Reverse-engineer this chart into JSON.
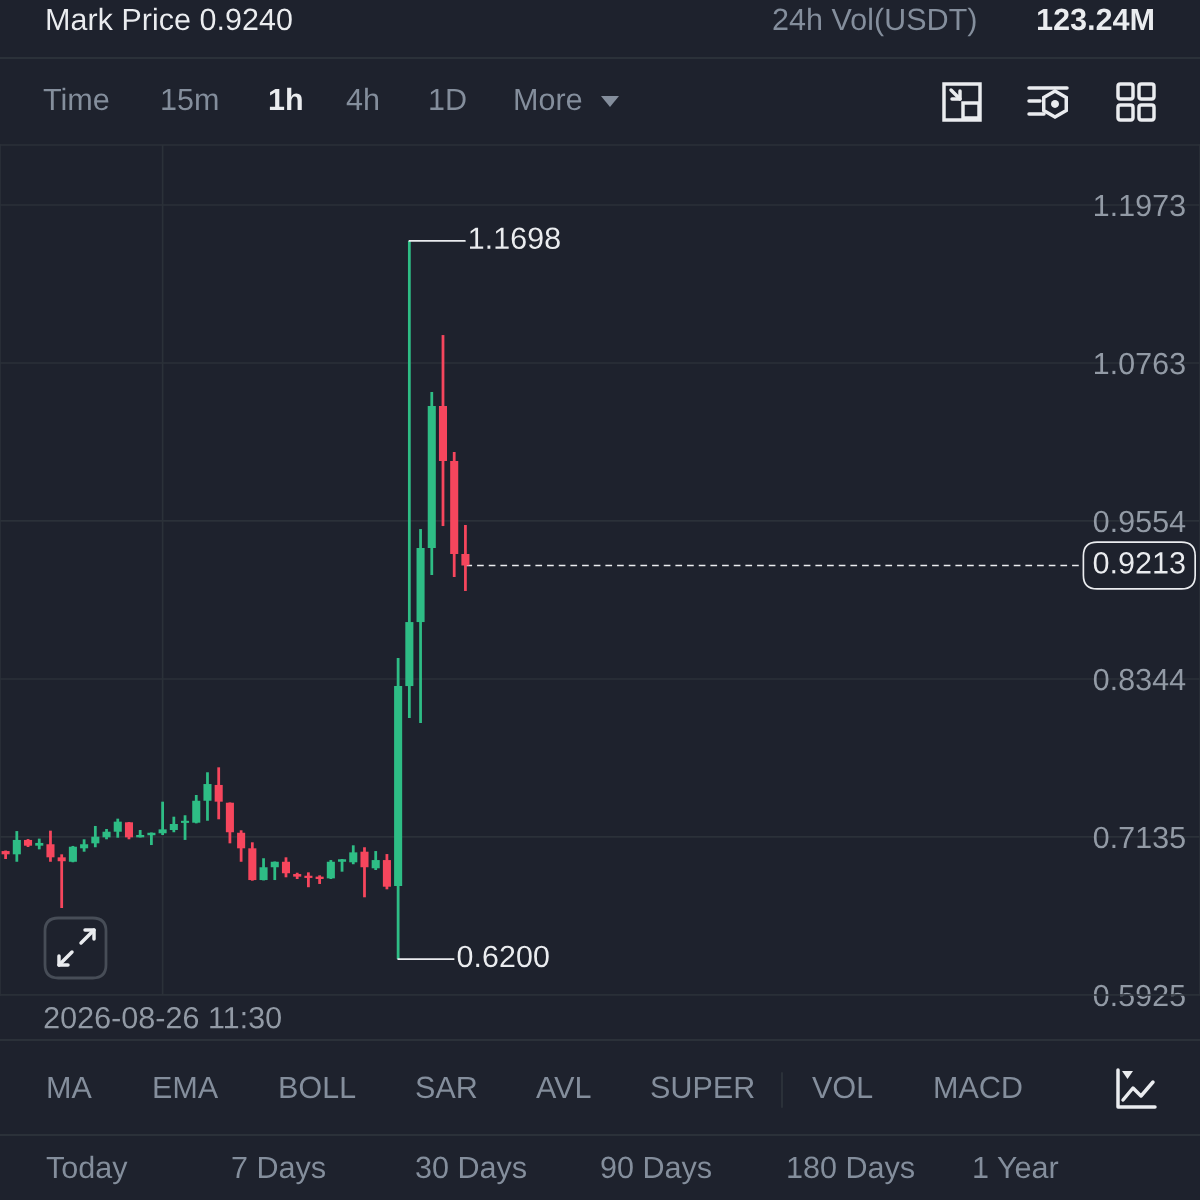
{
  "chart_data": {
    "type": "candlestick",
    "categories": [
      null,
      null,
      null,
      null,
      null,
      null,
      null,
      null,
      null,
      null,
      null,
      null,
      null,
      null,
      "2026-08-26 11:30",
      null,
      null,
      null,
      null,
      null,
      null,
      null,
      null,
      null,
      null,
      null,
      null,
      null,
      null,
      null,
      null,
      null,
      null,
      null,
      null,
      null,
      null,
      null,
      null,
      null,
      null,
      null,
      null,
      null,
      null,
      null,
      null,
      null,
      null,
      null,
      null,
      null,
      null,
      null,
      null,
      null,
      null,
      null,
      null,
      null,
      null,
      null,
      null,
      null,
      null,
      null,
      null,
      null,
      null,
      null,
      null,
      null,
      null,
      null,
      null,
      null,
      null,
      null,
      null,
      null,
      null,
      null,
      null,
      null,
      null,
      null,
      null,
      null,
      null,
      null,
      null,
      null,
      null,
      null,
      null,
      null,
      null,
      null,
      null,
      null,
      null,
      null,
      null,
      null,
      null,
      null,
      null
    ],
    "ohlc": [
      [
        0.7027,
        0.7031,
        0.6966,
        0.7002
      ],
      [
        0.7002,
        0.718,
        0.6945,
        0.7112
      ],
      [
        0.7112,
        0.7119,
        0.7058,
        0.7068
      ],
      [
        0.7068,
        0.7122,
        0.704,
        0.7089
      ],
      [
        0.7079,
        0.7183,
        0.6945,
        0.6979
      ],
      [
        0.6979,
        0.7002,
        0.6591,
        0.6949
      ],
      [
        0.6945,
        0.7066,
        0.6941,
        0.706
      ],
      [
        0.7048,
        0.7117,
        0.7022,
        0.7079
      ],
      [
        0.7086,
        0.7219,
        0.7056,
        0.7137
      ],
      [
        0.7132,
        0.7196,
        0.7117,
        0.7175
      ],
      [
        0.7175,
        0.7275,
        0.7129,
        0.7252
      ],
      [
        0.7247,
        0.7249,
        0.7117,
        0.7132
      ],
      [
        0.7132,
        0.7188,
        0.7131,
        0.715
      ],
      [
        0.7148,
        0.7169,
        0.7073,
        0.7167
      ],
      [
        0.7163,
        0.7405,
        0.715,
        0.7193
      ],
      [
        0.7188,
        0.729,
        0.7171,
        0.7234
      ],
      [
        0.7244,
        0.7301,
        0.7112,
        0.7257
      ],
      [
        0.7244,
        0.7456,
        0.7239,
        0.7412
      ],
      [
        0.7412,
        0.763,
        0.7259,
        0.754
      ],
      [
        0.7533,
        0.7668,
        0.727,
        0.7405
      ],
      [
        0.7397,
        0.7399,
        0.7086,
        0.7171
      ],
      [
        0.7167,
        0.7186,
        0.6945,
        0.7048
      ],
      [
        0.7048,
        0.7094,
        0.68,
        0.6805
      ],
      [
        0.6805,
        0.6972,
        0.6802,
        0.6903
      ],
      [
        0.6903,
        0.6947,
        0.6805,
        0.6945
      ],
      [
        0.6945,
        0.6979,
        0.6826,
        0.6857
      ],
      [
        0.6851,
        0.6861,
        0.6813,
        0.6831
      ],
      [
        0.6838,
        0.6864,
        0.675,
        0.6821
      ],
      [
        0.6831,
        0.6841,
        0.6775,
        0.6813
      ],
      [
        0.6818,
        0.6958,
        0.6813,
        0.6945
      ],
      [
        0.6945,
        0.6966,
        0.6869,
        0.6964
      ],
      [
        0.6941,
        0.7071,
        0.6926,
        0.7017
      ],
      [
        0.7022,
        0.7056,
        0.6673,
        0.6903
      ],
      [
        0.6895,
        0.7027,
        0.6882,
        0.6958
      ],
      [
        0.6958,
        0.7004,
        0.6734,
        0.6754
      ],
      [
        0.6759,
        0.8505,
        0.62,
        0.829
      ],
      [
        0.829,
        1.1698,
        0.8045,
        0.878
      ],
      [
        0.878,
        0.9492,
        0.8007,
        0.9347
      ],
      [
        0.9347,
        1.0541,
        0.914,
        1.0434
      ],
      [
        1.0434,
        1.0977,
        0.9515,
        1.0013
      ],
      [
        1.0013,
        1.0082,
        0.9125,
        0.9301
      ],
      [
        0.9301,
        0.9523,
        0.9018,
        0.9213
      ],
      null,
      null,
      null,
      null,
      null,
      null,
      null,
      null,
      null,
      null,
      null,
      null,
      null,
      null,
      null,
      null,
      null,
      null,
      null,
      null,
      null,
      null,
      null,
      null,
      null,
      null,
      null,
      null,
      null,
      null,
      null,
      null,
      null,
      null,
      null,
      null,
      null,
      null,
      null,
      null,
      null,
      null,
      null,
      null,
      null,
      null,
      null,
      null,
      null,
      null,
      null,
      null,
      null,
      null,
      null,
      null,
      null,
      null,
      null,
      null,
      null,
      null,
      null,
      null,
      null
    ],
    "colors": [
      "#f6465d",
      "#2ebd85",
      "#f6465d",
      "#2ebd85",
      "#f6465d",
      "#f6465d",
      "#2ebd85",
      "#2ebd85",
      "#2ebd85",
      "#2ebd85",
      "#2ebd85",
      "#f6465d",
      "#2ebd85",
      "#2ebd85",
      "#2ebd85",
      "#2ebd85",
      "#2ebd85",
      "#2ebd85",
      "#2ebd85",
      "#f6465d",
      "#f6465d",
      "#f6465d",
      "#f6465d",
      "#2ebd85",
      "#2ebd85",
      "#f6465d",
      "#f6465d",
      "#f6465d",
      "#f6465d",
      "#2ebd85",
      "#2ebd85",
      "#2ebd85",
      "#f6465d",
      "#2ebd85",
      "#f6465d",
      "#2ebd85",
      "#2ebd85",
      "#2ebd85",
      "#2ebd85",
      "#f6465d",
      "#f6465d",
      "#f6465d",
      null,
      null,
      null,
      null,
      null,
      null,
      null,
      null,
      null,
      null,
      null,
      null,
      null,
      null,
      null,
      null,
      null,
      null,
      null,
      null,
      null,
      null,
      null,
      null,
      null,
      null,
      null,
      null,
      null,
      null,
      null,
      null,
      null,
      null,
      null,
      null,
      null,
      null,
      null,
      null,
      null,
      null,
      null,
      null,
      null,
      null,
      null,
      null,
      null,
      null,
      null,
      null,
      null,
      null,
      null,
      null,
      null,
      null,
      null,
      null,
      null,
      null,
      null,
      null,
      null
    ],
    "ylim": [
      0.5925,
      1.2432
    ],
    "yticks": [
      {
        "value": 0.5925,
        "label": "0.5925"
      },
      {
        "value": 0.7135,
        "label": "0.7135"
      },
      {
        "value": 0.8344,
        "label": "0.8344"
      },
      {
        "value": 0.9554,
        "label": "0.9554"
      },
      {
        "value": 1.0763,
        "label": "1.0763"
      },
      {
        "value": 1.1973,
        "label": "1.1973"
      }
    ],
    "grid": true,
    "ref_lines": [
      {
        "axis": "y",
        "value": 0.9213,
        "label": "0.9213",
        "line_style": "dashed",
        "color": "#eaecef"
      }
    ],
    "annotations": [
      "1.1698",
      "0.6200",
      "Mark Price 0.9240",
      "24h Vol(USDT)",
      "123.24M",
      "Time",
      "15m",
      "1h",
      "4h",
      "1D",
      "More",
      "MA",
      "EMA",
      "BOLL",
      "SAR",
      "AVL",
      "SUPER",
      "VOL",
      "MACD",
      "Today",
      "7 Days",
      "30 Days",
      "90 Days",
      "180 Days",
      "1 Year"
    ]
  }
}
